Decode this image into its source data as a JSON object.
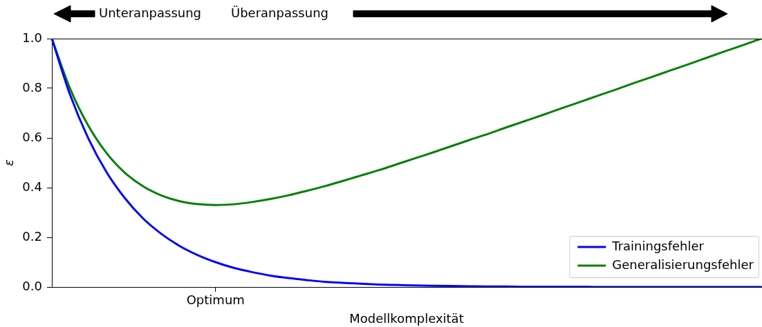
{
  "chart_data": {
    "type": "line",
    "xlabel": "Modellkomplexität",
    "ylabel": "ε",
    "categories": [
      null,
      null,
      null,
      null,
      null,
      null,
      null,
      null,
      null,
      "Optimum",
      null,
      null,
      null,
      null,
      null,
      null,
      null,
      null,
      null,
      null,
      null,
      null,
      null,
      null,
      null,
      null,
      null,
      null,
      null,
      null,
      null,
      null,
      null,
      null,
      null,
      null,
      null,
      null,
      null,
      null
    ],
    "ylim": [
      0,
      1
    ],
    "yticks": [
      {
        "value": 0,
        "label": "0.0"
      },
      0.2,
      0.4,
      0.6,
      0.8,
      {
        "value": 1,
        "label": "1.0"
      }
    ],
    "legend": "bottom right",
    "annotations": [
      "Unteranpassung",
      "Überanpassung"
    ],
    "series": [
      {
        "name": "Trainingsfehler",
        "color": "#0000ff",
        "values": [
          1,
          0.774,
          0.599,
          0.463,
          0.359,
          0.277,
          0.215,
          0.166,
          0.129,
          0.1,
          0.077,
          0.06,
          0.046,
          0.036,
          0.028,
          0.021,
          0.017,
          0.013,
          0.01,
          0.008,
          0.006,
          0.005,
          0.004,
          0.003,
          0.002,
          0.002,
          0.001,
          0.001,
          0.001,
          0.001,
          0,
          0,
          0,
          0,
          0,
          0,
          0,
          0,
          0,
          0
        ]
      },
      {
        "name": "Generalisierungsfehler",
        "color": "#008000",
        "values": [
          1,
          0.799,
          0.65,
          0.54,
          0.461,
          0.406,
          0.369,
          0.346,
          0.334,
          0.33,
          0.333,
          0.342,
          0.354,
          0.369,
          0.387,
          0.406,
          0.427,
          0.449,
          0.471,
          0.495,
          0.519,
          0.543,
          0.568,
          0.593,
          0.617,
          0.643,
          0.668,
          0.693,
          0.719,
          0.744,
          0.77,
          0.795,
          0.821,
          0.846,
          0.872,
          0.897,
          0.923,
          0.949,
          0.974,
          1
        ]
      }
    ]
  }
}
